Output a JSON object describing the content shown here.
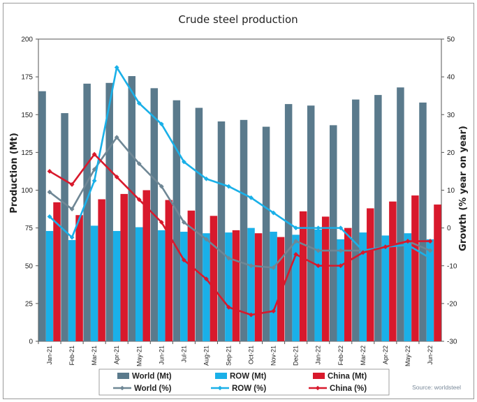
{
  "chart_data": {
    "type": "bar",
    "title": "Crude steel production",
    "ylabel": "Production (Mt)",
    "ylabel_right": "Growth (% year on year)",
    "ylim": [
      0,
      200
    ],
    "ylim_right": [
      -30,
      50
    ],
    "yticks": [
      "0",
      "25",
      "50",
      "75",
      "100",
      "125",
      "150",
      "175",
      "200"
    ],
    "yticks_right": [
      "-30",
      "-20",
      "-10",
      "0",
      "10",
      "20",
      "30",
      "40",
      "50"
    ],
    "categories": [
      "Jan-21",
      "Feb-21",
      "Mar-21",
      "Apr-21",
      "May-21",
      "Jun-21",
      "Jul-21",
      "Aug-21",
      "Sep-21",
      "Oct-21",
      "Nov-21",
      "Dec-21",
      "Jan-22",
      "Feb-22",
      "Mar-22",
      "Apr-22",
      "May-22",
      "Jun-22"
    ],
    "bar_series": [
      {
        "name": "World (Mt)",
        "color": "#5a7a8c",
        "values": [
          165.5,
          151,
          170.5,
          171,
          175.5,
          167.5,
          159.5,
          154.5,
          145.5,
          146.5,
          142,
          157,
          156,
          143,
          160,
          163,
          168,
          158
        ]
      },
      {
        "name": "ROW (Mt)",
        "color": "#1ab0e8",
        "values": [
          73,
          67,
          76.5,
          73,
          75.5,
          73.5,
          72.5,
          71.5,
          72,
          75,
          72.5,
          70.5,
          74,
          67.5,
          72,
          70,
          71.5,
          67.5
        ]
      },
      {
        "name": "China (Mt)",
        "color": "#d8192c",
        "values": [
          92,
          83.5,
          94,
          97.5,
          100,
          93.5,
          86.5,
          83,
          73.5,
          71.5,
          69,
          86,
          82.5,
          75,
          88,
          92.5,
          96.5,
          90.5
        ]
      }
    ],
    "line_series": [
      {
        "name": "World (%)",
        "color": "#6f8795",
        "values": [
          9.5,
          5,
          15.5,
          24,
          17,
          11,
          1.5,
          -3,
          -8,
          -10,
          -10.5,
          -3.5,
          -6,
          -6,
          -6,
          -5,
          -3.5,
          -6
        ]
      },
      {
        "name": "ROW (%)",
        "color": "#1ab0e8",
        "values": [
          3,
          -2.5,
          12.5,
          42.5,
          33,
          27.5,
          17.5,
          13,
          11,
          8,
          4,
          0,
          0,
          0,
          -6,
          -5,
          -4.5,
          -8
        ]
      },
      {
        "name": "China (%)",
        "color": "#d8192c",
        "values": [
          15,
          11.5,
          19.5,
          13.5,
          7.5,
          1.5,
          -8.5,
          -13.5,
          -21,
          -23,
          -22,
          -7,
          -10,
          -10,
          -6.5,
          -5,
          -3.5,
          -3.5
        ]
      }
    ],
    "legend_position": "bottom",
    "source": "Source: worldsteel"
  }
}
